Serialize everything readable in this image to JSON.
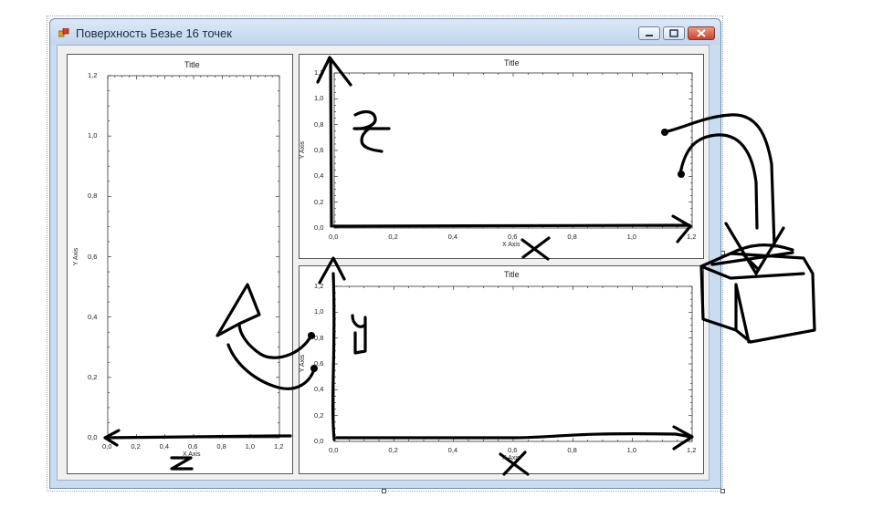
{
  "window": {
    "title": "Поверхность Безье 16 точек",
    "icon": "app-icon",
    "buttons": [
      "minimize-button",
      "maximize-button",
      "close-button"
    ]
  },
  "charts": [
    {
      "id": "left",
      "title": "Title",
      "xlabel": "X Axis",
      "ylabel": "Y Axis",
      "x_ticks": [
        "0,0",
        "0,2",
        "0,4",
        "0,6",
        "0,8",
        "1,0",
        "1,2"
      ],
      "y_ticks": [
        "0,0",
        "0,2",
        "0,4",
        "0,6",
        "0,8",
        "1,0",
        "1,2"
      ]
    },
    {
      "id": "top-right",
      "title": "Title",
      "xlabel": "X Axis",
      "ylabel": "Y Axis",
      "x_ticks": [
        "0,0",
        "0,2",
        "0,4",
        "0,6",
        "0,8",
        "1,0",
        "1,2"
      ],
      "y_ticks": [
        "0,0",
        "0,2",
        "0,4",
        "0,6",
        "0,8",
        "1,0",
        "1,2"
      ]
    },
    {
      "id": "bottom-right",
      "title": "Title",
      "xlabel": "X Axis",
      "ylabel": "Y Axis",
      "x_ticks": [
        "0,0",
        "0,2",
        "0,4",
        "0,6",
        "0,8",
        "1,0",
        "1,2"
      ],
      "y_ticks": [
        "0,0",
        "0,2",
        "0,4",
        "0,6",
        "0,8",
        "1,0",
        "1,2"
      ]
    }
  ],
  "annotations": {
    "top_right_letters": [
      "z",
      "x"
    ],
    "bottom_right_letters": [
      "y",
      "x"
    ],
    "left_letters": [
      "z"
    ]
  },
  "colors": {
    "ink": "#000000",
    "chart_bg": "#ffffff",
    "client_bg": "#f0f0f0",
    "frame": "#c9dcf0"
  }
}
